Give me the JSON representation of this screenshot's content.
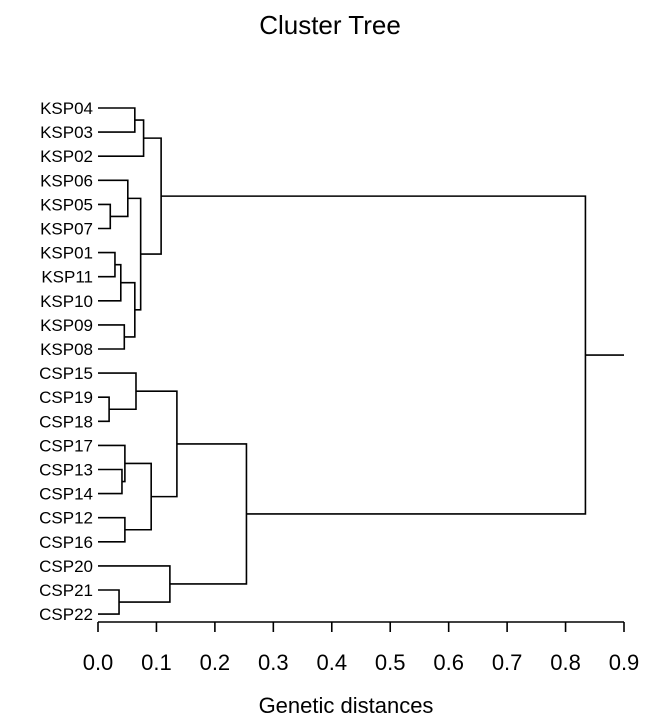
{
  "chart_data": {
    "type": "dendrogram",
    "orientation": "horizontal",
    "title": "Cluster Tree",
    "xlabel": "Genetic distances",
    "xlim": [
      0,
      0.9
    ],
    "x_ticks": [
      "0.0",
      "0.1",
      "0.2",
      "0.3",
      "0.4",
      "0.5",
      "0.6",
      "0.7",
      "0.8",
      "0.9"
    ],
    "leaves": [
      "KSP04",
      "KSP03",
      "KSP02",
      "KSP06",
      "KSP05",
      "KSP07",
      "KSP01",
      "KSP11",
      "KSP10",
      "KSP09",
      "KSP08",
      "CSP15",
      "CSP19",
      "CSP18",
      "CSP17",
      "CSP13",
      "CSP14",
      "CSP12",
      "CSP16",
      "CSP20",
      "CSP21",
      "CSP22"
    ],
    "merges": [
      {
        "id": "m1",
        "left": "KSP04",
        "right": "KSP03",
        "height": 0.063
      },
      {
        "id": "m2",
        "left": "m1",
        "right": "KSP02",
        "height": 0.078
      },
      {
        "id": "m3",
        "left": "KSP05",
        "right": "KSP07",
        "height": 0.021
      },
      {
        "id": "m4",
        "left": "KSP06",
        "right": "m3",
        "height": 0.051
      },
      {
        "id": "m5",
        "left": "KSP01",
        "right": "KSP11",
        "height": 0.029
      },
      {
        "id": "m6",
        "left": "m5",
        "right": "KSP10",
        "height": 0.039
      },
      {
        "id": "m7",
        "left": "KSP09",
        "right": "KSP08",
        "height": 0.045
      },
      {
        "id": "m8",
        "left": "m6",
        "right": "m7",
        "height": 0.063
      },
      {
        "id": "m9",
        "left": "m4",
        "right": "m8",
        "height": 0.073
      },
      {
        "id": "m10",
        "left": "m2",
        "right": "m9",
        "height": 0.108
      },
      {
        "id": "m11",
        "left": "CSP19",
        "right": "CSP18",
        "height": 0.019
      },
      {
        "id": "m12",
        "left": "CSP15",
        "right": "m11",
        "height": 0.065
      },
      {
        "id": "m13",
        "left": "CSP13",
        "right": "CSP14",
        "height": 0.041
      },
      {
        "id": "m14",
        "left": "CSP17",
        "right": "m13",
        "height": 0.046
      },
      {
        "id": "m15",
        "left": "CSP12",
        "right": "CSP16",
        "height": 0.046
      },
      {
        "id": "m16",
        "left": "m14",
        "right": "m15",
        "height": 0.091
      },
      {
        "id": "m17",
        "left": "m12",
        "right": "m16",
        "height": 0.135
      },
      {
        "id": "m18",
        "left": "CSP21",
        "right": "CSP22",
        "height": 0.036
      },
      {
        "id": "m19",
        "left": "CSP20",
        "right": "m18",
        "height": 0.123
      },
      {
        "id": "m20",
        "left": "m17",
        "right": "m19",
        "height": 0.254
      },
      {
        "id": "m21",
        "left": "m10",
        "right": "m20",
        "height": 0.834
      }
    ],
    "root_extension": 0.9,
    "grid": false,
    "legend": "none"
  }
}
